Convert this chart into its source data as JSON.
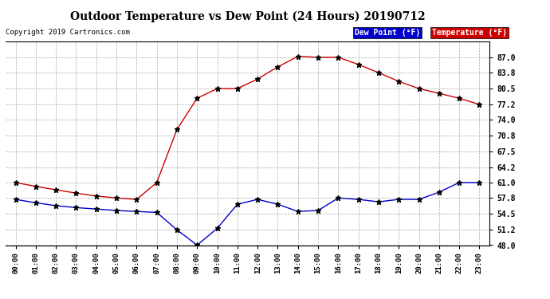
{
  "title": "Outdoor Temperature vs Dew Point (24 Hours) 20190712",
  "copyright": "Copyright 2019 Cartronics.com",
  "hours": [
    0,
    1,
    2,
    3,
    4,
    5,
    6,
    7,
    8,
    9,
    10,
    11,
    12,
    13,
    14,
    15,
    16,
    17,
    18,
    19,
    20,
    21,
    22,
    23
  ],
  "temperature": [
    61.0,
    60.2,
    59.5,
    58.8,
    58.2,
    57.8,
    57.5,
    61.0,
    72.0,
    78.5,
    80.5,
    80.5,
    82.5,
    85.0,
    87.2,
    87.0,
    87.0,
    85.5,
    83.8,
    82.0,
    80.5,
    79.5,
    78.5,
    77.2
  ],
  "dew_point": [
    57.5,
    56.8,
    56.2,
    55.8,
    55.5,
    55.2,
    55.0,
    54.8,
    51.2,
    48.0,
    51.5,
    56.5,
    57.5,
    56.5,
    55.0,
    55.2,
    57.8,
    57.5,
    57.0,
    57.5,
    57.5,
    59.0,
    61.0,
    61.0
  ],
  "temp_color": "#cc0000",
  "dew_color": "#0000cc",
  "bg_color": "#ffffff",
  "plot_bg": "#ffffff",
  "grid_color": "#aaaaaa",
  "ylim": [
    48.0,
    90.2
  ],
  "yticks": [
    48.0,
    51.2,
    54.5,
    57.8,
    61.0,
    64.2,
    67.5,
    70.8,
    74.0,
    77.2,
    80.5,
    83.8,
    87.0
  ],
  "legend_dew_bg": "#0000cc",
  "legend_temp_bg": "#cc0000",
  "legend_dew_text": "Dew Point (°F)",
  "legend_temp_text": "Temperature (°F)"
}
